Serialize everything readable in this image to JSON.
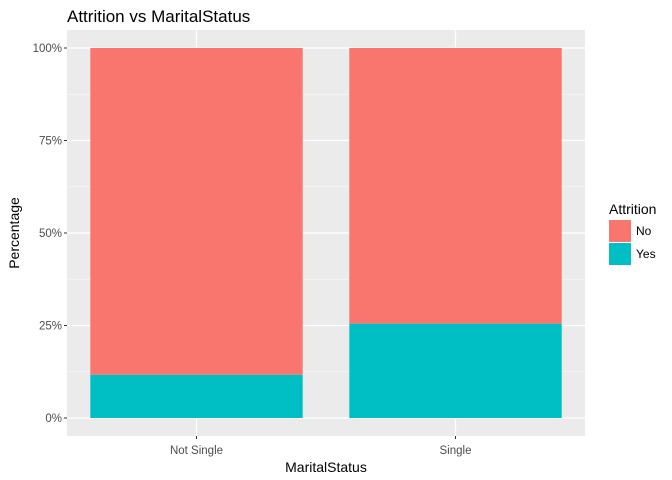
{
  "chart_data": {
    "type": "bar",
    "stacked": true,
    "title": "Attrition vs MaritalStatus",
    "xlabel": "MaritalStatus",
    "ylabel": "Percentage",
    "categories": [
      "Not Single",
      "Single"
    ],
    "series": [
      {
        "name": "No",
        "values": [
          88.3,
          74.5
        ],
        "color": "#F8766D"
      },
      {
        "name": "Yes",
        "values": [
          11.7,
          25.5
        ],
        "color": "#00BFC4"
      }
    ],
    "ylim": [
      0,
      100
    ],
    "yticks": [
      0,
      25,
      50,
      75,
      100
    ],
    "ytick_labels": [
      "0%",
      "25%",
      "50%",
      "75%",
      "100%"
    ],
    "grid": true,
    "panel_background": "#EBEBEB",
    "legend": {
      "title": "Attrition",
      "position": "right",
      "entries": [
        "No",
        "Yes"
      ]
    }
  }
}
